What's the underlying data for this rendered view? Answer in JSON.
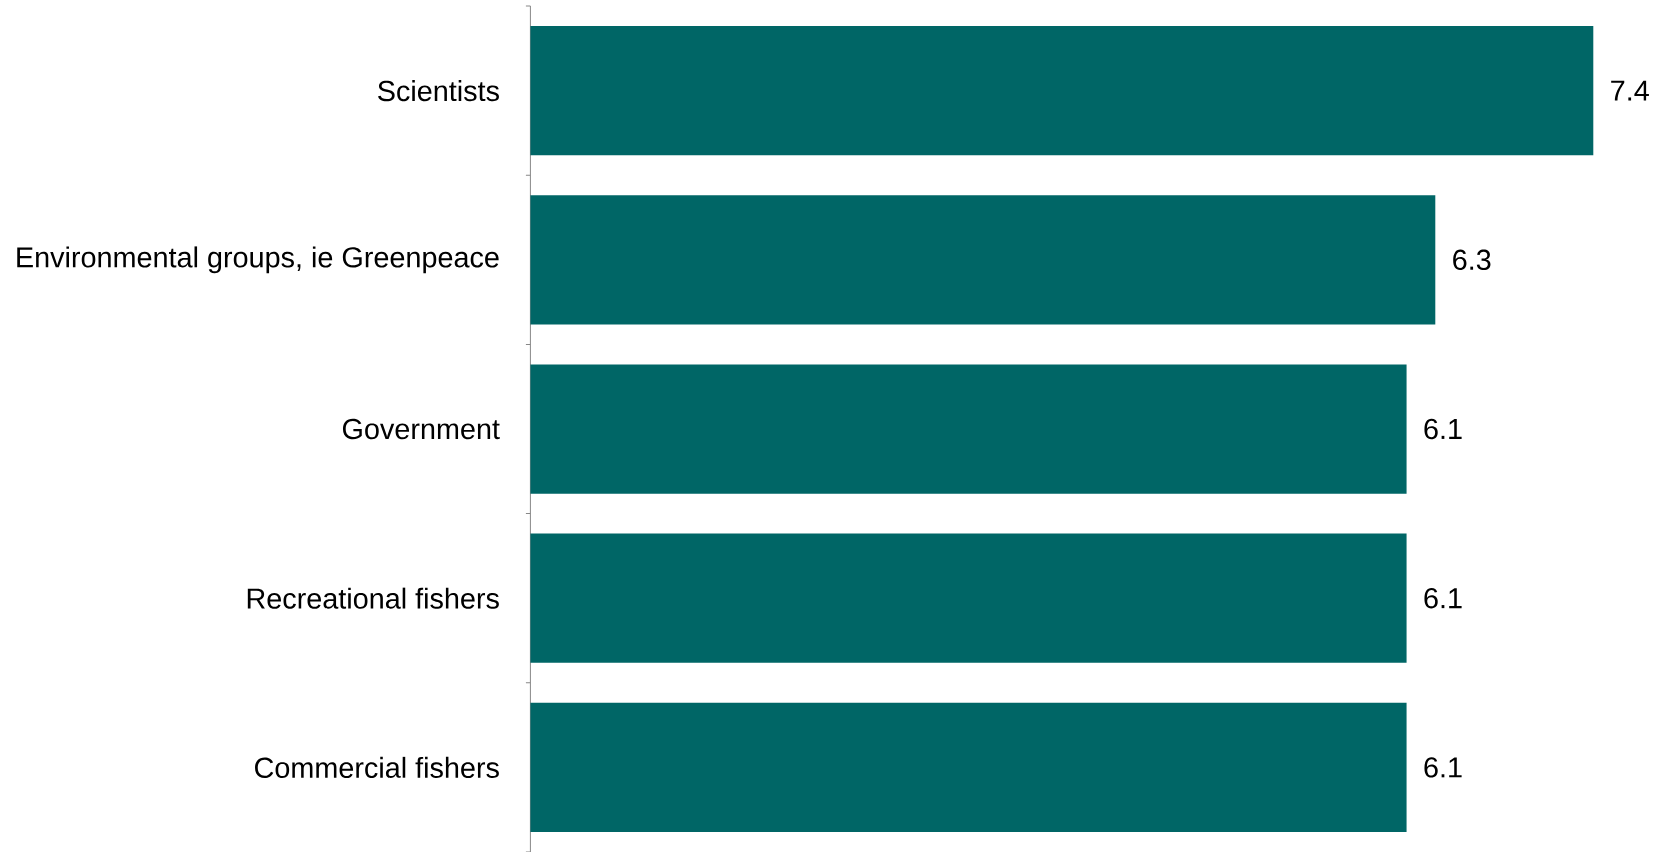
{
  "chart_data": {
    "type": "bar",
    "orientation": "horizontal",
    "categories": [
      "Scientists",
      "Environmental groups, ie Greenpeace",
      "Government",
      "Recreational fishers",
      "Commercial fishers"
    ],
    "values": [
      7.4,
      6.3,
      6.1,
      6.1,
      6.1
    ],
    "color": "#006666",
    "xlim": [
      0,
      7.4
    ],
    "data_labels": true
  }
}
